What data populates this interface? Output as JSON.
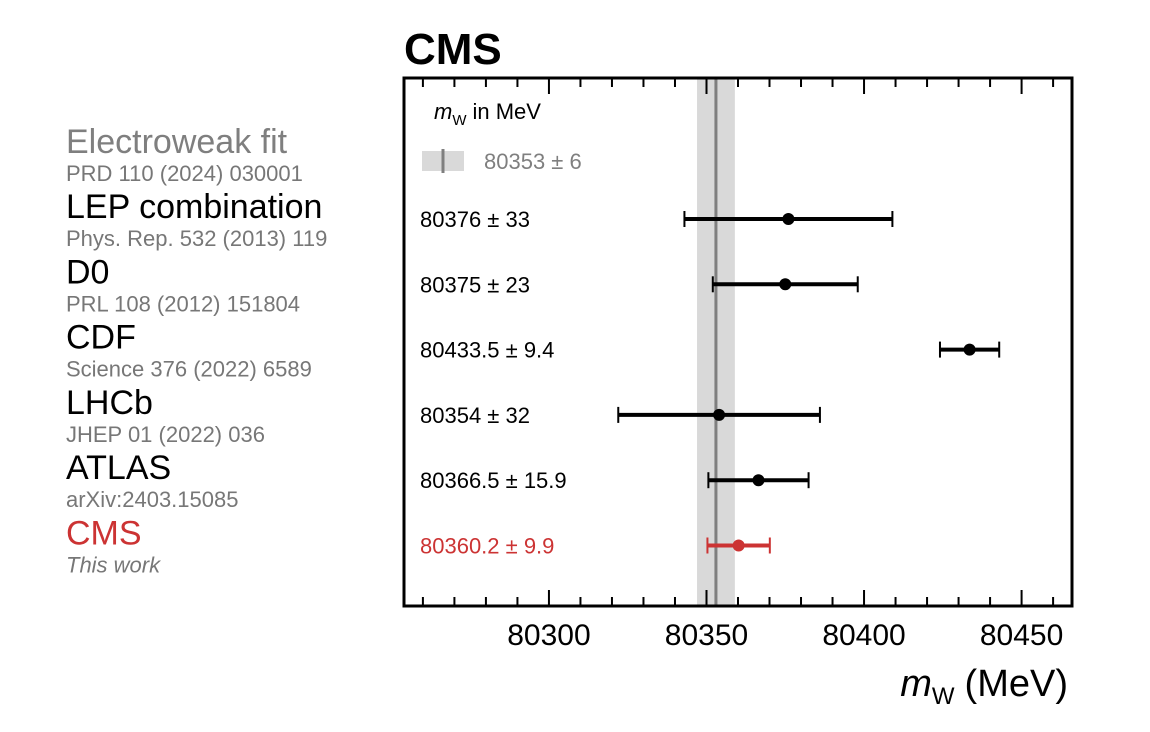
{
  "chart_data": {
    "type": "scatter",
    "title": "CMS",
    "legend_text": "in MeV",
    "legend_symbol": "m",
    "legend_subscript": "W",
    "xlabel_symbol": "m",
    "xlabel_subscript": "W",
    "xlabel_unit": "(MeV)",
    "xlim": [
      80254,
      80466
    ],
    "xticks": [
      80300,
      80350,
      80400,
      80450
    ],
    "xtick_labels": [
      "80300",
      "80350",
      "80400",
      "80450"
    ],
    "reference": {
      "name": "Electroweak fit",
      "citation": "PRD 110 (2024) 030001",
      "value": 80353,
      "uncertainty": 6,
      "label": "80353 ± 6",
      "color": "#7f7f7f",
      "band_color": "#d9d9d9"
    },
    "measurements": [
      {
        "name": "LEP combination",
        "citation": "Phys. Rep. 532 (2013) 119",
        "value": 80376,
        "uncertainty": 33,
        "label": "80376 ± 33",
        "color": "#000000"
      },
      {
        "name": "D0",
        "citation": "PRL 108 (2012) 151804",
        "value": 80375,
        "uncertainty": 23,
        "label": "80375 ± 23",
        "color": "#000000"
      },
      {
        "name": "CDF",
        "citation": "Science 376 (2022) 6589",
        "value": 80433.5,
        "uncertainty": 9.4,
        "label": "80433.5 ± 9.4",
        "color": "#000000"
      },
      {
        "name": "LHCb",
        "citation": "JHEP 01 (2022) 036",
        "value": 80354,
        "uncertainty": 32,
        "label": "80354 ± 32",
        "color": "#000000"
      },
      {
        "name": "ATLAS",
        "citation": "arXiv:2403.15085",
        "value": 80366.5,
        "uncertainty": 15.9,
        "label": "80366.5 ± 15.9",
        "color": "#000000"
      },
      {
        "name": "CMS",
        "citation": "This work",
        "value": 80360.2,
        "uncertainty": 9.9,
        "label": "80360.2 ± 9.9",
        "color": "#cc3333",
        "italic_citation": true
      }
    ]
  }
}
